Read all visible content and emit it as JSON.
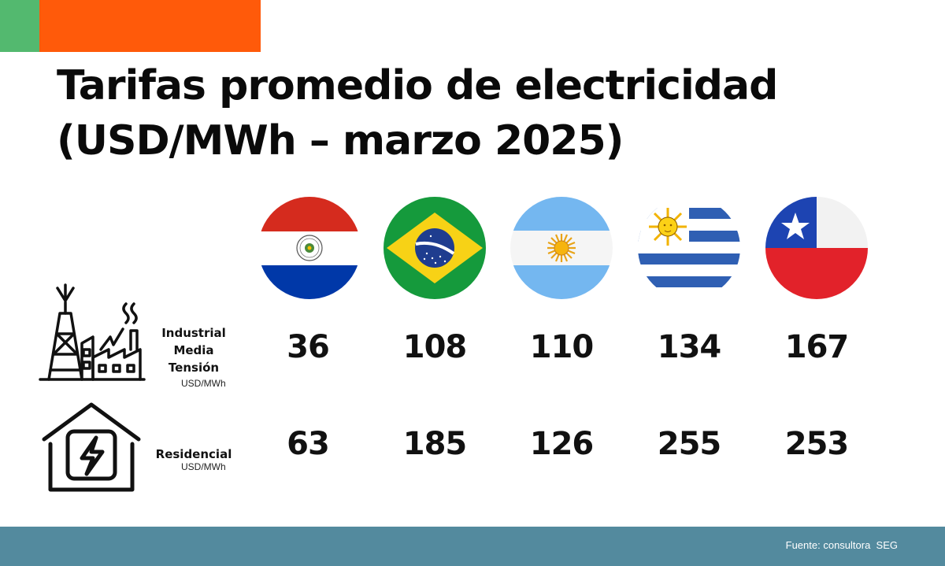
{
  "title": {
    "line1": "Tarifas promedio de electricidad",
    "line2": "(USD/MWh – marzo 2025)"
  },
  "rows": {
    "industrial": {
      "label_lines": [
        "Industrial",
        "Media",
        "Tensión"
      ],
      "unit": "USD/MWh",
      "icon": "factory-tower-icon"
    },
    "residencial": {
      "label": "Residencial",
      "unit": "USD/MWh",
      "icon": "house-lightning-icon"
    }
  },
  "source": "Fuente: consultora  SEG",
  "colors": {
    "accent_green": "#53b96f",
    "accent_orange": "#ff5a0a",
    "footer": "#538a9e"
  },
  "chart_data": {
    "type": "table",
    "categories": [
      "Paraguay",
      "Brasil",
      "Argentina",
      "Uruguay",
      "Chile"
    ],
    "flag_icons": [
      "paraguay-flag-icon",
      "brazil-flag-icon",
      "argentina-flag-icon",
      "uruguay-flag-icon",
      "chile-flag-icon"
    ],
    "series": [
      {
        "name": "Industrial Media Tensión",
        "values": [
          36,
          108,
          110,
          134,
          167
        ]
      },
      {
        "name": "Residencial",
        "values": [
          63,
          185,
          126,
          255,
          253
        ]
      }
    ],
    "unit": "USD/MWh"
  }
}
